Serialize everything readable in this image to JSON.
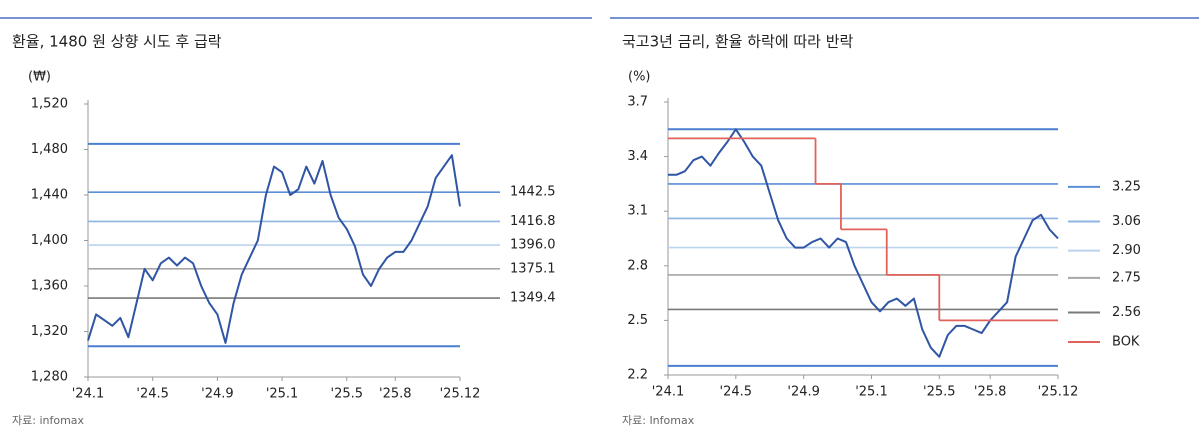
{
  "chart_data": [
    {
      "type": "line",
      "title": "환율, 1480 원 상향 시도 후 급락",
      "unit_label": "(₩)",
      "source": "자료: infomax",
      "xlim": [
        0,
        23
      ],
      "xticks": [
        {
          "value": 0,
          "label": "'24.1"
        },
        {
          "value": 4,
          "label": "'24.5"
        },
        {
          "value": 8,
          "label": "'24.9"
        },
        {
          "value": 12,
          "label": "'25.1"
        },
        {
          "value": 16,
          "label": "'25.5"
        },
        {
          "value": 19,
          "label": "'25.8"
        },
        {
          "value": 23,
          "label": "'25.12"
        }
      ],
      "ylim": [
        1280,
        1520
      ],
      "yticks": [
        {
          "value": 1280,
          "label": "1,280"
        },
        {
          "value": 1320,
          "label": "1,320"
        },
        {
          "value": 1360,
          "label": "1,360"
        },
        {
          "value": 1400,
          "label": "1,400"
        },
        {
          "value": 1440,
          "label": "1,440"
        },
        {
          "value": 1480,
          "label": "1,480"
        },
        {
          "value": 1520,
          "label": "1,520"
        }
      ],
      "series": [
        {
          "color": "#2f55a4",
          "x": [
            0,
            0.5,
            1,
            1.5,
            2,
            2.5,
            3,
            3.5,
            4,
            4.5,
            5,
            5.5,
            6,
            6.5,
            7,
            7.5,
            8,
            8.5,
            9,
            9.5,
            10,
            10.5,
            11,
            11.5,
            12,
            12.5,
            13,
            13.5,
            14,
            14.5,
            15,
            15.5,
            16,
            16.5,
            17,
            17.5,
            18,
            18.5,
            19,
            19.5,
            20,
            20.5,
            21,
            21.5,
            22,
            22.5,
            23
          ],
          "values": [
            1312,
            1335,
            1330,
            1325,
            1332,
            1315,
            1345,
            1375,
            1365,
            1380,
            1385,
            1378,
            1385,
            1380,
            1360,
            1345,
            1335,
            1310,
            1345,
            1370,
            1385,
            1400,
            1440,
            1465,
            1460,
            1440,
            1445,
            1465,
            1450,
            1470,
            1440,
            1420,
            1410,
            1395,
            1370,
            1360,
            1375,
            1385,
            1390,
            1390,
            1400,
            1415,
            1430,
            1455,
            1465,
            1475,
            1430
          ]
        }
      ],
      "bounds": {
        "color": "#4a7fd0",
        "values": [
          1307,
          1485
        ]
      },
      "reference_lines": [
        {
          "value": 1442.5,
          "color": "#5b8fd6"
        },
        {
          "value": 1416.8,
          "color": "#8db4e2"
        },
        {
          "value": 1396,
          "label": "1396.0",
          "color": "#bcd3ee"
        },
        {
          "value": 1375.1,
          "color": "#a6a6a6"
        },
        {
          "value": 1349.4,
          "color": "#7a7a7a"
        }
      ]
    },
    {
      "type": "line",
      "title": "국고3년 금리, 환율 하락에 따라 반락",
      "unit_label": "(%)",
      "source": "자료: Infomax",
      "xlim": [
        0,
        23
      ],
      "xticks": [
        {
          "value": 0,
          "label": "'24.1"
        },
        {
          "value": 4,
          "label": "'24.5"
        },
        {
          "value": 8,
          "label": "'24.9"
        },
        {
          "value": 12,
          "label": "'25.1"
        },
        {
          "value": 16,
          "label": "'25.5"
        },
        {
          "value": 19,
          "label": "'25.8"
        },
        {
          "value": 23,
          "label": "'25.12"
        }
      ],
      "ylim": [
        2.2,
        3.7
      ],
      "yticks": [
        2.2,
        2.5,
        2.8,
        3.1,
        3.4,
        3.7
      ],
      "series": [
        {
          "color": "#2f55a4",
          "x": [
            0,
            0.5,
            1,
            1.5,
            2,
            2.5,
            3,
            3.5,
            4,
            4.5,
            5,
            5.5,
            6,
            6.5,
            7,
            7.5,
            8,
            8.5,
            9,
            9.5,
            10,
            10.5,
            11,
            11.5,
            12,
            12.5,
            13,
            13.5,
            14,
            14.5,
            15,
            15.5,
            16,
            16.5,
            17,
            17.5,
            18,
            18.5,
            19,
            19.5,
            20,
            20.5,
            21,
            21.5,
            22,
            22.5,
            23
          ],
          "values": [
            3.3,
            3.3,
            3.32,
            3.38,
            3.4,
            3.35,
            3.42,
            3.48,
            3.55,
            3.48,
            3.4,
            3.35,
            3.2,
            3.05,
            2.95,
            2.9,
            2.9,
            2.93,
            2.95,
            2.9,
            2.95,
            2.93,
            2.8,
            2.7,
            2.6,
            2.55,
            2.6,
            2.62,
            2.58,
            2.62,
            2.45,
            2.35,
            2.3,
            2.42,
            2.47,
            2.47,
            2.45,
            2.43,
            2.5,
            2.55,
            2.6,
            2.85,
            2.95,
            3.05,
            3.08,
            3.0,
            2.95
          ]
        },
        {
          "name": "BOK",
          "color": "#e0625a",
          "step": true,
          "x": [
            0,
            8.7,
            10.2,
            12.9,
            16
          ],
          "values": [
            3.5,
            3.25,
            3.0,
            2.75,
            2.5
          ]
        }
      ],
      "bounds": {
        "color": "#4a7fd0",
        "values": [
          2.25,
          3.55
        ]
      },
      "reference_lines": [
        {
          "value": 3.25,
          "color": "#5b8fd6"
        },
        {
          "value": 3.06,
          "color": "#8db4e2"
        },
        {
          "value": 2.9,
          "label": "2.90",
          "color": "#bcd3ee"
        },
        {
          "value": 2.75,
          "color": "#a6a6a6"
        },
        {
          "value": 2.56,
          "color": "#7a7a7a"
        }
      ]
    }
  ]
}
